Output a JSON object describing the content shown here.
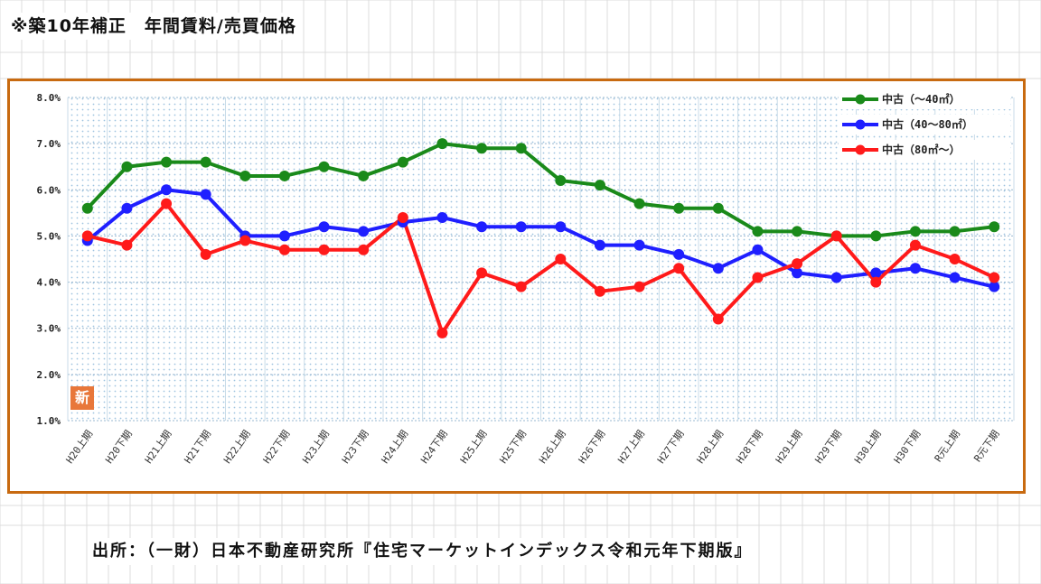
{
  "heading": "※築10年補正　年間賃料/売買価格",
  "source": "出所：（一財）日本不動産研究所『住宅マーケットインデックス令和元年下期版』",
  "badge": "新",
  "colors": {
    "frame": "#c86a10",
    "green": "#1a8a1a",
    "blue": "#1f1fff",
    "red": "#ff1a1a"
  },
  "chart_data": {
    "type": "line",
    "title": "",
    "xlabel": "",
    "ylabel": "",
    "ylim": [
      1.0,
      8.0
    ],
    "yticks": [
      "8.0%",
      "7.0%",
      "6.0%",
      "5.0%",
      "4.0%",
      "3.0%",
      "2.0%",
      "1.0%"
    ],
    "legend_position": "top-right",
    "grid": true,
    "categories": [
      "H20上期",
      "H20下期",
      "H21上期",
      "H21下期",
      "H22上期",
      "H22下期",
      "H23上期",
      "H23下期",
      "H24上期",
      "H24下期",
      "H25上期",
      "H25下期",
      "H26上期",
      "H26下期",
      "H27上期",
      "H27下期",
      "H28上期",
      "H28下期",
      "H29上期",
      "H29下期",
      "H30上期",
      "H30下期",
      "R元上期",
      "R元下期"
    ],
    "series": [
      {
        "name": "中古（～40㎡）",
        "color": "#1a8a1a",
        "values": [
          5.6,
          6.5,
          6.6,
          6.6,
          6.3,
          6.3,
          6.5,
          6.3,
          6.6,
          7.0,
          6.9,
          6.9,
          6.2,
          6.1,
          5.7,
          5.6,
          5.6,
          5.1,
          5.1,
          5.0,
          5.0,
          5.1,
          5.1,
          5.2
        ]
      },
      {
        "name": "中古（40～80㎡）",
        "color": "#1f1fff",
        "values": [
          4.9,
          5.6,
          6.0,
          5.9,
          5.0,
          5.0,
          5.2,
          5.1,
          5.3,
          5.4,
          5.2,
          5.2,
          5.2,
          4.8,
          4.8,
          4.6,
          4.3,
          4.7,
          4.2,
          4.1,
          4.2,
          4.3,
          4.1,
          3.9
        ]
      },
      {
        "name": "中古（80㎡～）",
        "color": "#ff1a1a",
        "values": [
          5.0,
          4.8,
          5.7,
          4.6,
          4.9,
          4.7,
          4.7,
          4.7,
          5.4,
          2.9,
          4.2,
          3.9,
          4.5,
          3.8,
          3.9,
          4.3,
          3.2,
          4.1,
          4.4,
          5.0,
          4.0,
          4.8,
          4.5,
          4.1
        ]
      }
    ]
  }
}
